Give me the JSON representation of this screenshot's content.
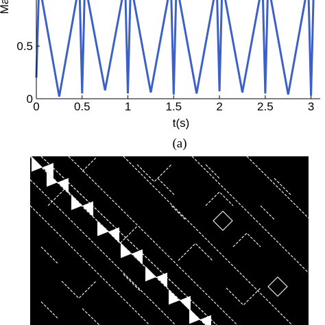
{
  "chart_data": [
    {
      "type": "line",
      "xlabel": "t(s)",
      "ylabel": "Mag",
      "xlim": [
        0,
        3.1
      ],
      "ylim": [
        0,
        1.1
      ],
      "x_ticks": [
        "0",
        "0.5",
        "1",
        "1.5",
        "2",
        "2.5",
        "3"
      ],
      "y_ticks": [
        "0",
        "0.5"
      ],
      "grid": false,
      "series": [
        {
          "color": "#3c5fc8",
          "points": [
            [
              0.0,
              0.2
            ],
            [
              0.03,
              1.1
            ],
            [
              0.25,
              0.02
            ],
            [
              0.47,
              1.1
            ],
            [
              0.5,
              0.05
            ],
            [
              0.53,
              1.1
            ],
            [
              0.75,
              0.08
            ],
            [
              0.97,
              1.1
            ],
            [
              1.0,
              0.05
            ],
            [
              1.03,
              1.1
            ],
            [
              1.25,
              0.06
            ],
            [
              1.47,
              1.1
            ],
            [
              1.5,
              0.04
            ],
            [
              1.53,
              1.1
            ],
            [
              1.75,
              0.05
            ],
            [
              1.97,
              1.1
            ],
            [
              2.0,
              0.07
            ],
            [
              2.03,
              1.1
            ],
            [
              2.25,
              0.06
            ],
            [
              2.47,
              1.1
            ],
            [
              2.5,
              0.05
            ],
            [
              2.53,
              1.1
            ],
            [
              2.75,
              0.04
            ],
            [
              2.97,
              1.1
            ],
            [
              3.0,
              0.03
            ],
            [
              3.03,
              1.1
            ]
          ]
        }
      ]
    }
  ],
  "caption_a": "(a)",
  "panel_b": {
    "background_color": "#000000",
    "line_color": "#ffffff"
  }
}
